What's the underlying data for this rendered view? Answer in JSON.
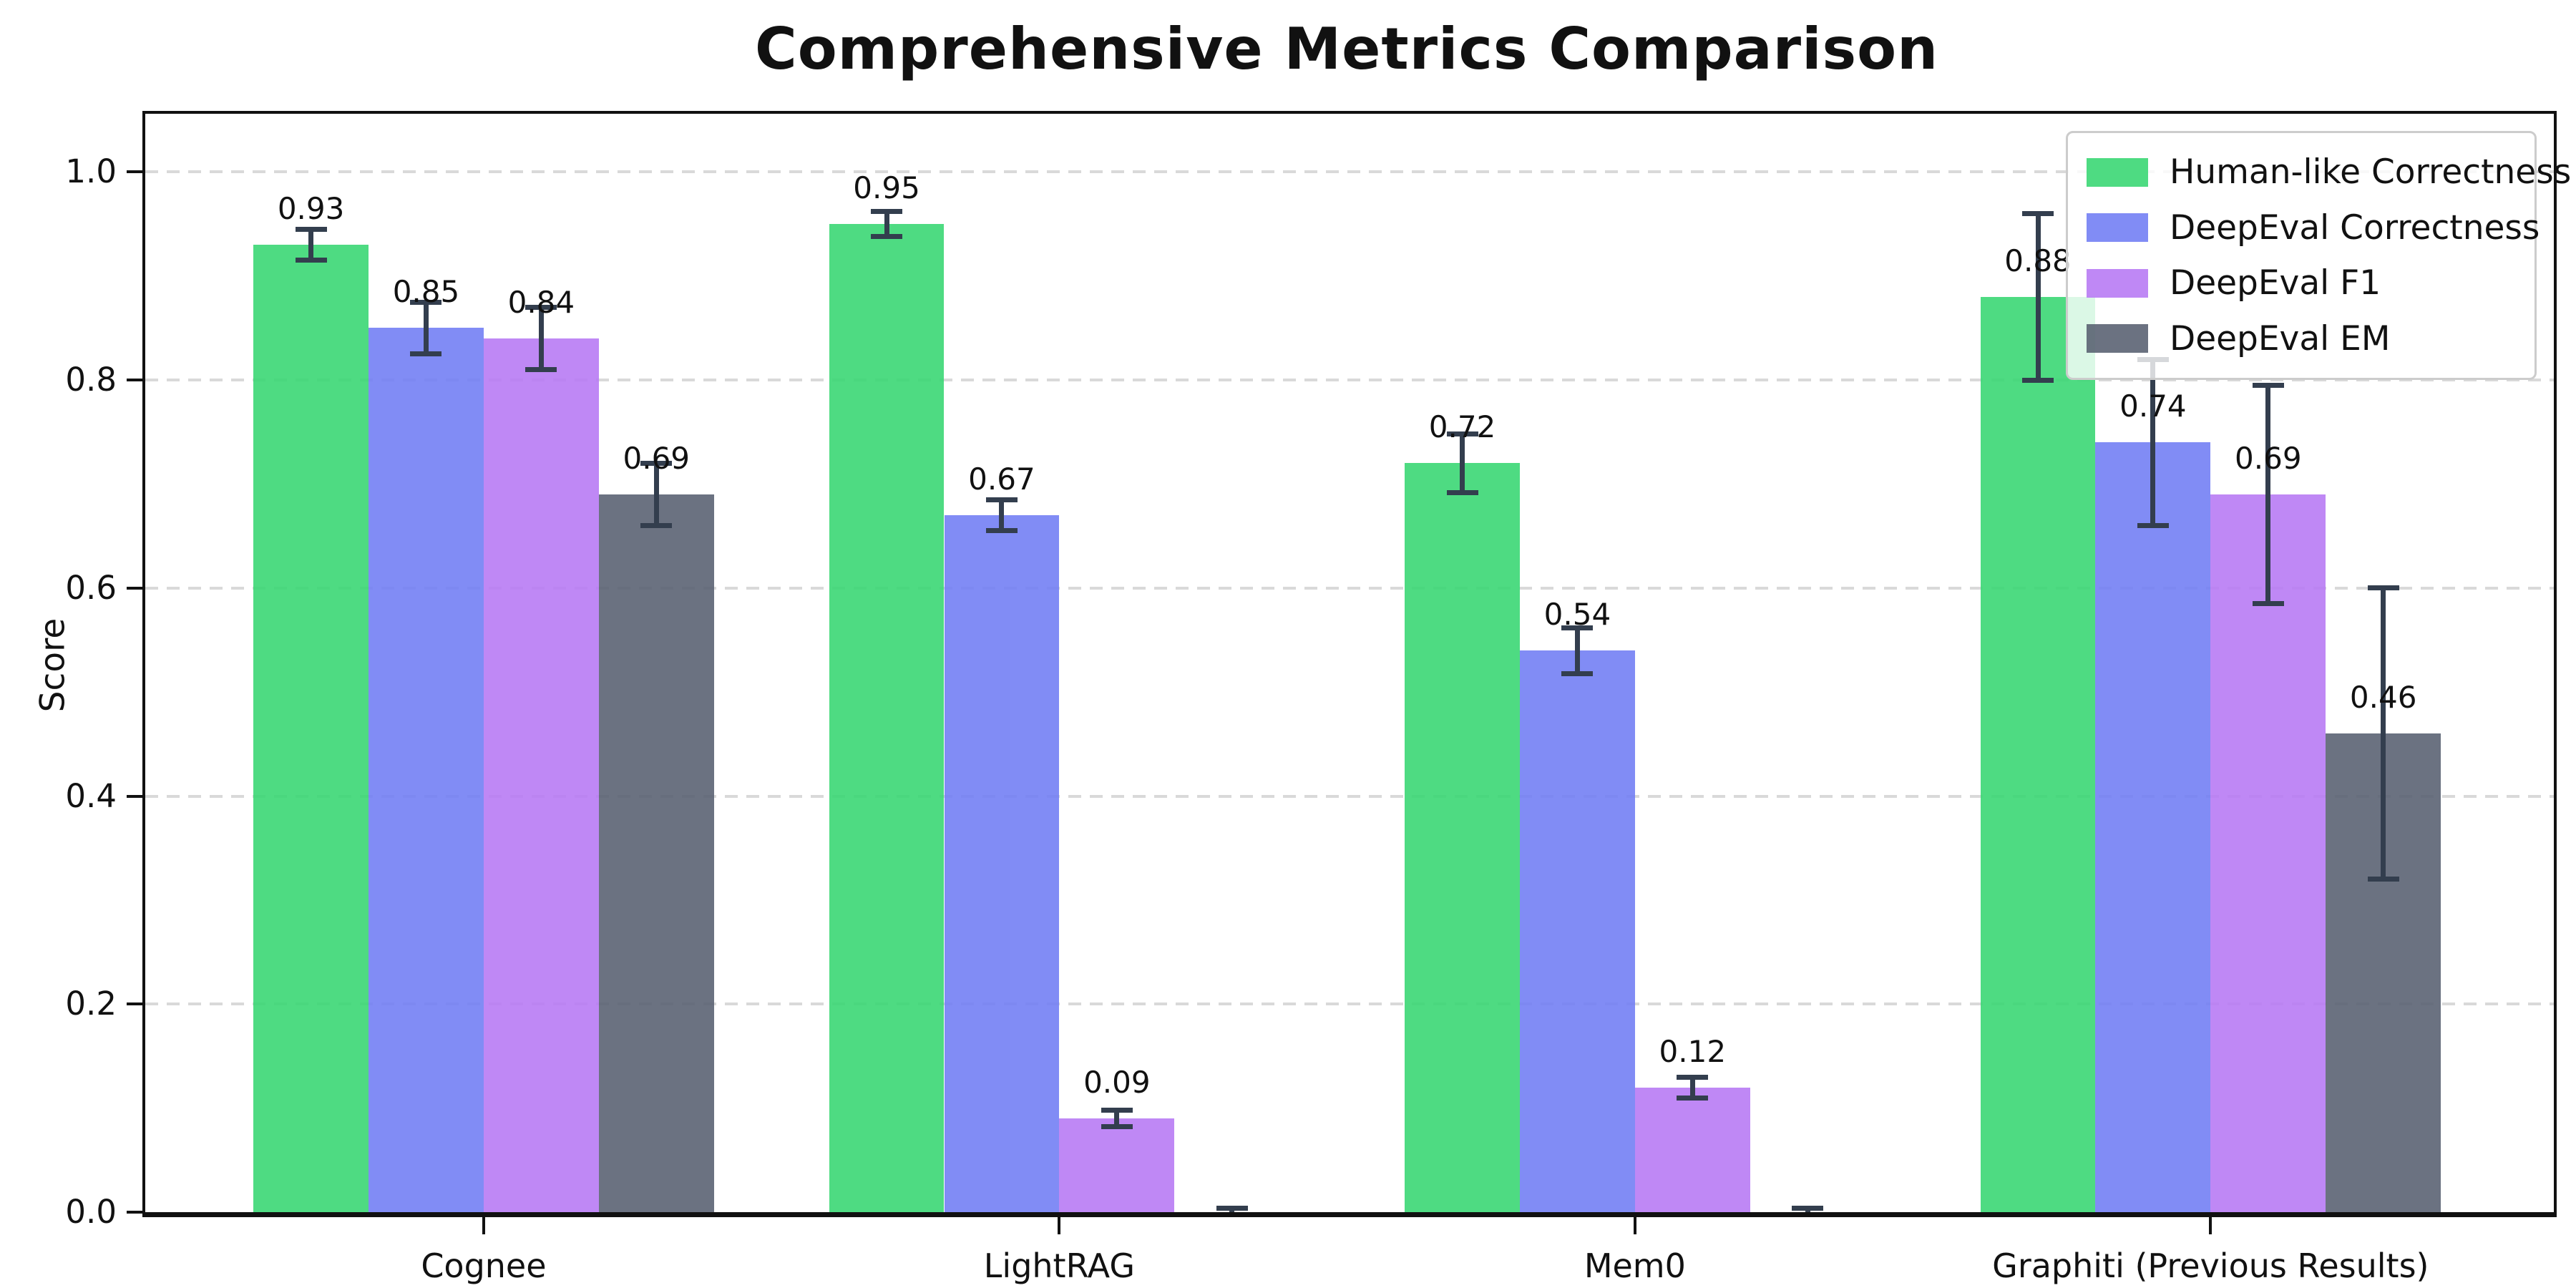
{
  "chart_data": {
    "type": "bar",
    "title": "Comprehensive Metrics Comparison",
    "ylabel": "Score",
    "xlabel": "",
    "categories": [
      "Cognee",
      "LightRAG",
      "Mem0",
      "Graphiti (Previous Results)"
    ],
    "yticks": [
      0.0,
      0.2,
      0.4,
      0.6,
      0.8,
      1.0
    ],
    "ytick_labels": [
      "0.0",
      "0.2",
      "0.4",
      "0.6",
      "0.8",
      "1.0"
    ],
    "ylim": [
      0,
      1.056
    ],
    "grid": "horizontal-dashed",
    "legend_position": "upper-right",
    "bars_have_error_bars": true,
    "series": [
      {
        "name": "Human-like Correctness",
        "color": "#35d671",
        "values": [
          0.93,
          0.95,
          0.72,
          0.88
        ],
        "errors": [
          0.015,
          0.012,
          0.028,
          0.08
        ],
        "labels": [
          "0.93",
          "0.95",
          "0.72",
          "0.88"
        ]
      },
      {
        "name": "DeepEval Correctness",
        "color": "#707cf4",
        "values": [
          0.85,
          0.67,
          0.54,
          0.74
        ],
        "errors": [
          0.025,
          0.015,
          0.022,
          0.08
        ],
        "labels": [
          "0.85",
          "0.67",
          "0.54",
          "0.74"
        ]
      },
      {
        "name": "DeepEval F1",
        "color": "#b678f4",
        "values": [
          0.84,
          0.09,
          0.12,
          0.69
        ],
        "errors": [
          0.03,
          0.008,
          0.01,
          0.105
        ],
        "labels": [
          "0.84",
          "0.09",
          "0.12",
          "0.69"
        ]
      },
      {
        "name": "DeepEval EM",
        "color": "#575f6f",
        "values": [
          0.69,
          0.0,
          0.0,
          0.46
        ],
        "errors": [
          0.03,
          0.004,
          0.004,
          0.14
        ],
        "labels": [
          "0.69",
          "",
          "",
          "0.46"
        ]
      }
    ]
  },
  "colors": {
    "axis": "#111111",
    "grid": "#d9d9d9",
    "error_bar": "#333e4e",
    "legend_border": "#cccccc",
    "background": "#ffffff"
  }
}
